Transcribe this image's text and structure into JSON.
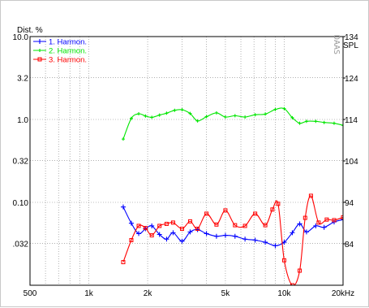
{
  "chart_data": {
    "type": "line",
    "ylabel": "Dist. %",
    "ylabel_right": "SPL",
    "watermark": "DAAS",
    "x_scale": "log",
    "y_scale": "log",
    "xlim": [
      500,
      20000
    ],
    "ylim": [
      0.01,
      10
    ],
    "ylim_right": [
      74,
      134
    ],
    "grid": true,
    "legend_position": "top-left",
    "x_ticks": [
      500,
      1000,
      2000,
      5000,
      10000,
      20000
    ],
    "x_tick_labels": [
      "500",
      "1k",
      "2k",
      "5k",
      "10k",
      "20kHz"
    ],
    "y_ticks": [
      10,
      3.2,
      1.0,
      0.32,
      0.1,
      0.032
    ],
    "y_tick_labels": [
      "10.0",
      "3.2",
      "1.0",
      "0.32",
      "0.10",
      ".032"
    ],
    "y_right_ticks": [
      134,
      124,
      114,
      104,
      94,
      84
    ],
    "y_right_tick_labels": [
      "134",
      "124",
      "114",
      "104",
      "94",
      "84"
    ],
    "series": [
      {
        "name": "1. Harmon.",
        "color": "#0000ff",
        "x": [
          1500,
          1650,
          1800,
          1950,
          2100,
          2300,
          2500,
          2700,
          3000,
          3300,
          3600,
          4000,
          4500,
          5000,
          5600,
          6300,
          7100,
          8000,
          9000,
          10000,
          11000,
          12000,
          13000,
          14500,
          16000,
          18000,
          20000
        ],
        "y": [
          0.088,
          0.056,
          0.042,
          0.048,
          0.052,
          0.041,
          0.036,
          0.043,
          0.034,
          0.044,
          0.047,
          0.042,
          0.039,
          0.04,
          0.039,
          0.036,
          0.035,
          0.033,
          0.03,
          0.033,
          0.043,
          0.055,
          0.044,
          0.052,
          0.05,
          0.058,
          0.062
        ]
      },
      {
        "name": "2. Harmon.",
        "color": "#00e600",
        "x": [
          1500,
          1650,
          1800,
          1950,
          2100,
          2300,
          2500,
          2750,
          3000,
          3300,
          3600,
          4000,
          4500,
          5000,
          5600,
          6300,
          7100,
          8000,
          9000,
          10000,
          11000,
          12000,
          13000,
          14500,
          16000,
          18000,
          20000
        ],
        "y": [
          0.58,
          1.03,
          1.17,
          1.1,
          1.06,
          1.13,
          1.19,
          1.29,
          1.31,
          1.18,
          0.96,
          1.08,
          1.2,
          1.07,
          1.11,
          1.07,
          1.14,
          1.16,
          1.32,
          1.35,
          1.05,
          0.9,
          0.95,
          0.95,
          0.92,
          0.9,
          0.85
        ]
      },
      {
        "name": "3. Harmon.",
        "color": "#ff0000",
        "x": [
          1500,
          1650,
          1800,
          1950,
          2100,
          2300,
          2500,
          2700,
          3000,
          3300,
          3600,
          4000,
          4500,
          5000,
          5600,
          6300,
          7100,
          8000,
          8700,
          9300,
          10000,
          11000,
          12000,
          12800,
          13700,
          15000,
          16500,
          18000,
          20000
        ],
        "y": [
          0.019,
          0.035,
          0.052,
          0.049,
          0.04,
          0.052,
          0.055,
          0.057,
          0.048,
          0.059,
          0.048,
          0.073,
          0.054,
          0.08,
          0.053,
          0.052,
          0.073,
          0.053,
          0.082,
          0.096,
          0.02,
          0.004,
          0.015,
          0.065,
          0.12,
          0.057,
          0.062,
          0.061,
          0.066
        ]
      }
    ]
  }
}
